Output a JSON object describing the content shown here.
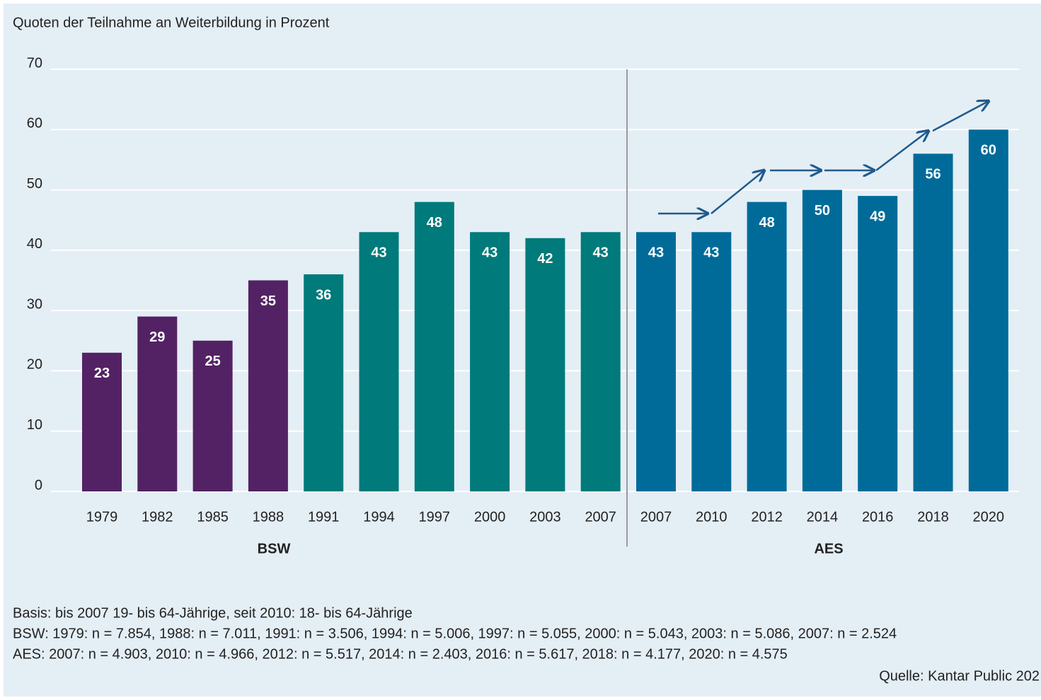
{
  "chart_data": {
    "type": "bar",
    "title": "Quoten der Teilnahme an Weiterbildung in Prozent",
    "categories": [
      "1979",
      "1982",
      "1985",
      "1988",
      "1991",
      "1994",
      "1997",
      "2000",
      "2003",
      "2007",
      "2007",
      "2010",
      "2012",
      "2014",
      "2016",
      "2018",
      "2020"
    ],
    "values": [
      23,
      29,
      25,
      35,
      36,
      43,
      48,
      43,
      42,
      43,
      43,
      43,
      48,
      50,
      49,
      56,
      60
    ],
    "colors": [
      "#532264",
      "#532264",
      "#532264",
      "#532264",
      "#007a7a",
      "#007a7a",
      "#007a7a",
      "#007a7a",
      "#007a7a",
      "#007a7a",
      "#006b99",
      "#006b99",
      "#006b99",
      "#006b99",
      "#006b99",
      "#006b99",
      "#006b99"
    ],
    "groups": [
      {
        "label": "BSW",
        "size": 10
      },
      {
        "label": "AES",
        "size": 7
      }
    ],
    "ylim": [
      0,
      70
    ],
    "yticks": [
      0,
      10,
      20,
      30,
      40,
      50,
      60,
      70
    ],
    "grid": true,
    "notes": [
      "Basis: bis 2007 19- bis 64-Jährige, seit 2010: 18- bis 64-Jährige",
      "BSW: 1979: n = 7.854, 1988: n = 7.011, 1991: n = 3.506, 1994: n = 5.006, 1997: n = 5.055, 2000: n = 5.043, 2003: n = 5.086, 2007: n = 2.524",
      "AES: 2007: n = 4.903, 2010: n = 4.966, 2012: n = 5.517, 2014: n = 2.403, 2016: n = 5.617, 2018: n = 4.177, 2020: n = 4.575"
    ],
    "source": "Quelle: Kantar Public 202"
  }
}
